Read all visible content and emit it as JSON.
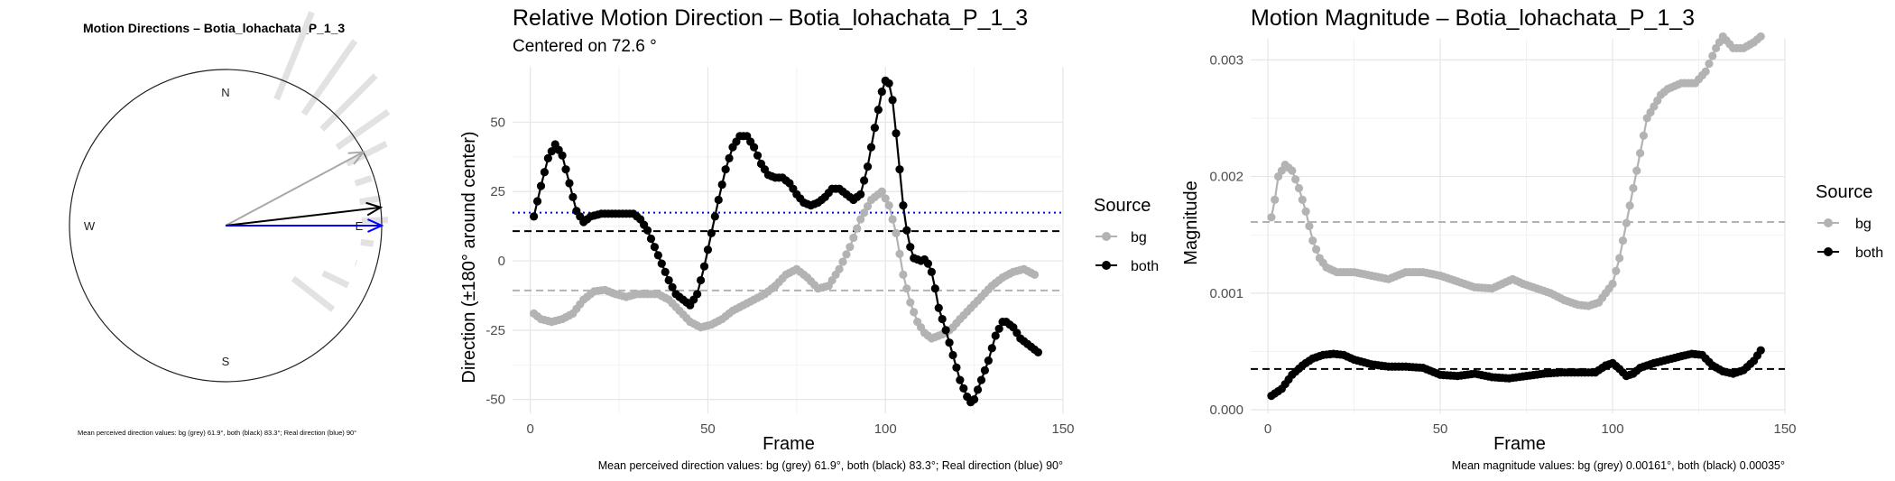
{
  "compass": {
    "title": "Motion Directions – Botia_lohachata_P_1_3",
    "labels": {
      "n": "N",
      "e": "E",
      "s": "S",
      "w": "W"
    },
    "caption": "Mean perceived direction values: bg (grey) 61.9°, both (black) 83.3°; Real direction (blue) 90°",
    "arrows": [
      {
        "name": "bg",
        "angle_deg": 61.9,
        "color": "#a8a8a8"
      },
      {
        "name": "both",
        "angle_deg": 83.3,
        "color": "#000000"
      },
      {
        "name": "real",
        "angle_deg": 90,
        "color": "#0000ff"
      }
    ],
    "rose_color": "#e2e2e2"
  },
  "chart_data": [
    {
      "type": "line",
      "title": "Relative Motion Direction – Botia_lohachata_P_1_3",
      "subtitle": "Centered on  72.6 °",
      "xlabel": "Frame",
      "ylabel": "Direction (±180° around center)",
      "xlim": [
        -5,
        150
      ],
      "ylim": [
        -55,
        70
      ],
      "xticks": [
        0,
        50,
        100,
        150
      ],
      "yticks": [
        -50,
        -25,
        0,
        25,
        50
      ],
      "grid": true,
      "legend": {
        "title": "Source",
        "position": "right"
      },
      "caption": "Mean perceived direction values: bg (grey) 61.9°, both (black) 83.3°; Real direction (blue) 90°",
      "series": [
        {
          "name": "bg",
          "color": "#b3b3b3",
          "points": [
            [
              1,
              -19
            ],
            [
              3,
              -21
            ],
            [
              6,
              -22
            ],
            [
              9,
              -21
            ],
            [
              12,
              -19
            ],
            [
              15,
              -14
            ],
            [
              18,
              -11
            ],
            [
              21,
              -10.5
            ],
            [
              24,
              -12
            ],
            [
              27,
              -13
            ],
            [
              30,
              -12
            ],
            [
              33,
              -12
            ],
            [
              36,
              -12
            ],
            [
              39,
              -14
            ],
            [
              42,
              -18
            ],
            [
              45,
              -22
            ],
            [
              48,
              -24
            ],
            [
              51,
              -23
            ],
            [
              54,
              -21
            ],
            [
              57,
              -18
            ],
            [
              60,
              -16
            ],
            [
              63,
              -14
            ],
            [
              66,
              -12
            ],
            [
              69,
              -9
            ],
            [
              72,
              -5
            ],
            [
              75,
              -3
            ],
            [
              78,
              -6
            ],
            [
              81,
              -10
            ],
            [
              84,
              -9
            ],
            [
              87,
              -3
            ],
            [
              90,
              5
            ],
            [
              93,
              15
            ],
            [
              96,
              22
            ],
            [
              99,
              25
            ],
            [
              101,
              20
            ],
            [
              103,
              10
            ],
            [
              105,
              -5
            ],
            [
              107,
              -15
            ],
            [
              109,
              -22
            ],
            [
              111,
              -26
            ],
            [
              113,
              -28
            ],
            [
              115,
              -27
            ],
            [
              117,
              -26
            ],
            [
              119,
              -24
            ],
            [
              121,
              -21
            ],
            [
              124,
              -17
            ],
            [
              127,
              -13
            ],
            [
              130,
              -9
            ],
            [
              133,
              -6
            ],
            [
              136,
              -4
            ],
            [
              139,
              -3
            ],
            [
              142,
              -5
            ]
          ]
        },
        {
          "name": "both",
          "color": "#000000",
          "points": [
            [
              1,
              16
            ],
            [
              3,
              27
            ],
            [
              5,
              37
            ],
            [
              7,
              42
            ],
            [
              9,
              38
            ],
            [
              11,
              28
            ],
            [
              13,
              18
            ],
            [
              15,
              14
            ],
            [
              17,
              16
            ],
            [
              20,
              17
            ],
            [
              23,
              17
            ],
            [
              26,
              17
            ],
            [
              29,
              17
            ],
            [
              31,
              15
            ],
            [
              33,
              11
            ],
            [
              35,
              5
            ],
            [
              37,
              -1
            ],
            [
              39,
              -7
            ],
            [
              41,
              -12
            ],
            [
              43,
              -14
            ],
            [
              45,
              -16
            ],
            [
              47,
              -12
            ],
            [
              49,
              -2
            ],
            [
              51,
              10
            ],
            [
              53,
              22
            ],
            [
              55,
              33
            ],
            [
              57,
              41
            ],
            [
              59,
              45
            ],
            [
              61,
              45
            ],
            [
              63,
              41
            ],
            [
              65,
              35
            ],
            [
              67,
              31
            ],
            [
              69,
              30
            ],
            [
              71,
              30
            ],
            [
              73,
              28
            ],
            [
              75,
              24
            ],
            [
              77,
              21
            ],
            [
              79,
              20
            ],
            [
              81,
              21
            ],
            [
              83,
              23
            ],
            [
              85,
              26
            ],
            [
              87,
              26
            ],
            [
              89,
              24
            ],
            [
              91,
              22
            ],
            [
              93,
              24
            ],
            [
              95,
              34
            ],
            [
              97,
              48
            ],
            [
              99,
              61
            ],
            [
              100,
              65
            ],
            [
              101,
              64
            ],
            [
              102,
              58
            ],
            [
              103,
              46
            ],
            [
              104,
              33
            ],
            [
              105,
              20
            ],
            [
              106,
              11
            ],
            [
              107,
              5
            ],
            [
              108,
              1
            ],
            [
              110,
              0
            ],
            [
              111,
              0.5
            ],
            [
              112,
              -1
            ],
            [
              113,
              -4
            ],
            [
              114,
              -10
            ],
            [
              115,
              -17
            ],
            [
              117,
              -25
            ],
            [
              119,
              -34
            ],
            [
              121,
              -43
            ],
            [
              123,
              -49
            ],
            [
              124,
              -51
            ],
            [
              125,
              -50
            ],
            [
              127,
              -43
            ],
            [
              129,
              -36
            ],
            [
              131,
              -27
            ],
            [
              133,
              -22
            ],
            [
              134,
              -22
            ],
            [
              136,
              -24
            ],
            [
              138,
              -28
            ],
            [
              141,
              -31
            ],
            [
              143,
              -33
            ]
          ]
        }
      ],
      "hlines": [
        {
          "name": "bg-mean",
          "y": -10.7,
          "color": "#b3b3b3",
          "dash": "dashed"
        },
        {
          "name": "both-mean",
          "y": 10.7,
          "color": "#000000",
          "dash": "dashed"
        },
        {
          "name": "real-direction",
          "y": 17.4,
          "color": "#0000ff",
          "dash": "dotted"
        }
      ]
    },
    {
      "type": "line",
      "title": "Motion Magnitude – Botia_lohachata_P_1_3",
      "xlabel": "Frame",
      "ylabel": "Magnitude",
      "xlim": [
        -5,
        150
      ],
      "ylim": [
        -3e-05,
        0.00318
      ],
      "xticks": [
        0,
        50,
        100,
        150
      ],
      "yticks": [
        0,
        0.001,
        0.002,
        0.003
      ],
      "ytick_labels": [
        "0.000",
        "0.001",
        "0.002",
        "0.003"
      ],
      "grid": true,
      "legend": {
        "title": "Source",
        "position": "right"
      },
      "caption": "Mean magnitude values: bg (grey) 0.00161°, both (black) 0.00035°",
      "series": [
        {
          "name": "bg",
          "color": "#b3b3b3",
          "points": [
            [
              1,
              0.00165
            ],
            [
              2,
              0.0018
            ],
            [
              3,
              0.002
            ],
            [
              5,
              0.0021
            ],
            [
              7,
              0.00205
            ],
            [
              9,
              0.0019
            ],
            [
              11,
              0.0017
            ],
            [
              13,
              0.00145
            ],
            [
              15,
              0.0013
            ],
            [
              17,
              0.00122
            ],
            [
              20,
              0.00118
            ],
            [
              25,
              0.00118
            ],
            [
              30,
              0.00115
            ],
            [
              35,
              0.00112
            ],
            [
              40,
              0.00118
            ],
            [
              45,
              0.00118
            ],
            [
              50,
              0.00115
            ],
            [
              55,
              0.0011
            ],
            [
              60,
              0.00105
            ],
            [
              65,
              0.00104
            ],
            [
              68,
              0.00108
            ],
            [
              71,
              0.00112
            ],
            [
              74,
              0.00108
            ],
            [
              78,
              0.00104
            ],
            [
              82,
              0.001
            ],
            [
              86,
              0.00094
            ],
            [
              90,
              0.0009
            ],
            [
              93,
              0.00089
            ],
            [
              96,
              0.00092
            ],
            [
              98,
              0.001
            ],
            [
              100,
              0.00108
            ],
            [
              102,
              0.0013
            ],
            [
              104,
              0.0016
            ],
            [
              106,
              0.0019
            ],
            [
              108,
              0.0022
            ],
            [
              110,
              0.0025
            ],
            [
              112,
              0.0026
            ],
            [
              114,
              0.0027
            ],
            [
              116,
              0.00275
            ],
            [
              120,
              0.0028
            ],
            [
              124,
              0.0028
            ],
            [
              127,
              0.0029
            ],
            [
              130,
              0.0031
            ],
            [
              132,
              0.0032
            ],
            [
              135,
              0.0031
            ],
            [
              138,
              0.0031
            ],
            [
              141,
              0.00315
            ],
            [
              143,
              0.0032
            ]
          ]
        },
        {
          "name": "both",
          "color": "#000000",
          "points": [
            [
              1,
              0.00012
            ],
            [
              4,
              0.00018
            ],
            [
              7,
              0.0003
            ],
            [
              10,
              0.00038
            ],
            [
              13,
              0.00044
            ],
            [
              16,
              0.00047
            ],
            [
              19,
              0.00048
            ],
            [
              22,
              0.00047
            ],
            [
              25,
              0.00043
            ],
            [
              30,
              0.00039
            ],
            [
              35,
              0.00037
            ],
            [
              40,
              0.00037
            ],
            [
              45,
              0.00036
            ],
            [
              50,
              0.0003
            ],
            [
              55,
              0.00029
            ],
            [
              60,
              0.00031
            ],
            [
              65,
              0.00028
            ],
            [
              70,
              0.00027
            ],
            [
              75,
              0.00029
            ],
            [
              80,
              0.00031
            ],
            [
              85,
              0.00032
            ],
            [
              90,
              0.00032
            ],
            [
              95,
              0.00032
            ],
            [
              98,
              0.00038
            ],
            [
              100,
              0.0004
            ],
            [
              102,
              0.00035
            ],
            [
              104,
              0.00029
            ],
            [
              106,
              0.00031
            ],
            [
              108,
              0.00036
            ],
            [
              112,
              0.0004
            ],
            [
              116,
              0.00043
            ],
            [
              120,
              0.00046
            ],
            [
              123,
              0.00048
            ],
            [
              126,
              0.00047
            ],
            [
              129,
              0.00038
            ],
            [
              132,
              0.00033
            ],
            [
              135,
              0.00031
            ],
            [
              138,
              0.00034
            ],
            [
              141,
              0.00042
            ],
            [
              143,
              0.00051
            ]
          ]
        }
      ],
      "hlines": [
        {
          "name": "bg-mean",
          "y": 0.00161,
          "color": "#b3b3b3",
          "dash": "dashed"
        },
        {
          "name": "both-mean",
          "y": 0.00035,
          "color": "#000000",
          "dash": "dashed"
        }
      ]
    }
  ]
}
